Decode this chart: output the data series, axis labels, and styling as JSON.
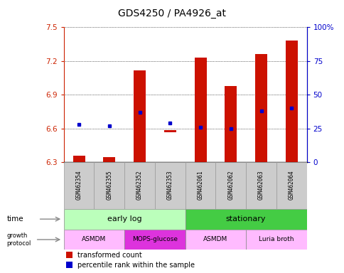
{
  "title": "GDS4250 / PA4926_at",
  "samples": [
    "GSM462354",
    "GSM462355",
    "GSM462352",
    "GSM462353",
    "GSM462061",
    "GSM462062",
    "GSM462063",
    "GSM462064"
  ],
  "bar_bottoms": [
    6.3,
    6.3,
    6.3,
    6.57,
    6.3,
    6.3,
    6.3,
    6.3
  ],
  "bar_tops": [
    6.36,
    6.35,
    7.12,
    6.585,
    7.23,
    6.98,
    7.26,
    7.38
  ],
  "blue_dots_pct": [
    28,
    27,
    37,
    29,
    26,
    25,
    38,
    40
  ],
  "ylim": [
    6.3,
    7.5
  ],
  "yticks_left": [
    6.3,
    6.6,
    6.9,
    7.2,
    7.5
  ],
  "yticks_right": [
    0,
    25,
    50,
    75,
    100
  ],
  "left_color": "#cc2200",
  "right_color": "#0000cc",
  "bar_color": "#cc1100",
  "dot_color": "#0000cc",
  "time_groups": [
    {
      "label": "early log",
      "start": 0,
      "end": 4,
      "color": "#bbffbb"
    },
    {
      "label": "stationary",
      "start": 4,
      "end": 8,
      "color": "#44cc44"
    }
  ],
  "protocol_groups": [
    {
      "label": "ASMDM",
      "start": 0,
      "end": 2,
      "color": "#ffbbff"
    },
    {
      "label": "MOPS-glucose",
      "start": 2,
      "end": 4,
      "color": "#ee44ee"
    },
    {
      "label": "ASMDM",
      "start": 4,
      "end": 6,
      "color": "#ffbbff"
    },
    {
      "label": "Luria broth",
      "start": 6,
      "end": 8,
      "color": "#ffbbff"
    }
  ],
  "sample_bg_color": "#cccccc",
  "legend_red_label": "transformed count",
  "legend_blue_label": "percentile rank within the sample",
  "bar_width": 0.4
}
